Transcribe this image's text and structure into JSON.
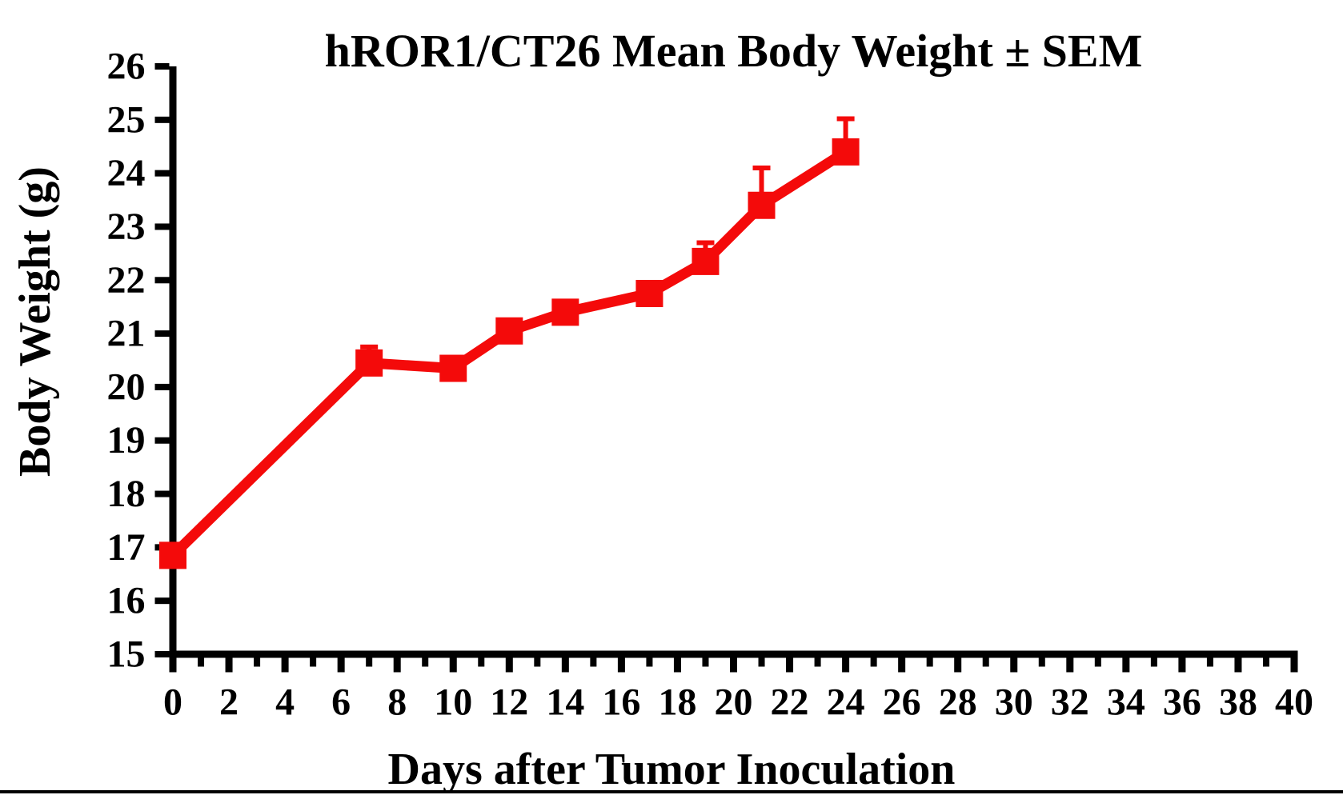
{
  "figure": {
    "background_color": "#ffffff",
    "bottom_rule_color": "#000000"
  },
  "chart_data": {
    "type": "line",
    "title": "hROR1/CT26 Mean Body Weight ± SEM",
    "xlabel": "Days after Tumor Inoculation",
    "ylabel": "Body Weight (g)",
    "xlim": [
      0,
      40
    ],
    "ylim": [
      15,
      26
    ],
    "x_major_ticks": [
      0,
      2,
      4,
      6,
      8,
      10,
      12,
      14,
      16,
      18,
      20,
      22,
      24,
      26,
      28,
      30,
      32,
      34,
      36,
      38,
      40
    ],
    "x_minor_ticks": [
      1,
      3,
      5,
      7,
      9,
      11,
      13,
      15,
      17,
      19,
      21,
      23,
      25,
      27,
      29,
      31,
      33,
      35,
      37,
      39
    ],
    "y_ticks": [
      15,
      16,
      17,
      18,
      19,
      20,
      21,
      22,
      23,
      24,
      25,
      26
    ],
    "grid": false,
    "legend": "none",
    "error_bars": "SEM, upper bars only",
    "axis_color": "#000000",
    "series": [
      {
        "name": "hROR1/CT26",
        "color": "#f40a0a",
        "marker": "filled-square",
        "x": [
          0,
          7,
          10,
          12,
          14,
          17,
          19,
          21,
          24
        ],
        "values": [
          16.85,
          20.45,
          20.35,
          21.05,
          21.4,
          21.75,
          22.35,
          23.4,
          24.4
        ],
        "sem_upper": [
          null,
          0.3,
          null,
          null,
          null,
          null,
          0.35,
          0.7,
          0.62
        ]
      }
    ]
  }
}
